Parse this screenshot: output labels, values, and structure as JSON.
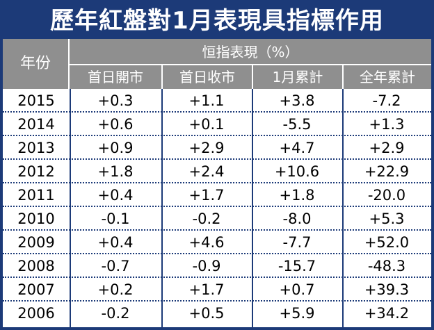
{
  "title": "歷年紅盤對1月表現具指標作用",
  "header": {
    "year": "年份",
    "group": "恒指表現（%）",
    "columns": [
      "首日開市",
      "首日收市",
      "1月累計",
      "全年累計"
    ]
  },
  "rows": [
    {
      "year": "2015",
      "values": [
        "+0.3",
        "+1.1",
        "+3.8",
        "-7.2"
      ]
    },
    {
      "year": "2014",
      "values": [
        "+0.6",
        "+0.1",
        "-5.5",
        "+1.3"
      ]
    },
    {
      "year": "2013",
      "values": [
        "+0.9",
        "+2.9",
        "+4.7",
        "+2.9"
      ]
    },
    {
      "year": "2012",
      "values": [
        "+1.8",
        "+2.4",
        "+10.6",
        "+22.9"
      ]
    },
    {
      "year": "2011",
      "values": [
        "+0.4",
        "+1.7",
        "+1.8",
        "-20.0"
      ]
    },
    {
      "year": "2010",
      "values": [
        "-0.1",
        "-0.2",
        "-8.0",
        "+5.3"
      ]
    },
    {
      "year": "2009",
      "values": [
        "+0.4",
        "+4.6",
        "-7.7",
        "+52.0"
      ]
    },
    {
      "year": "2008",
      "values": [
        "-0.7",
        "-0.9",
        "-15.7",
        "-48.3"
      ]
    },
    {
      "year": "2007",
      "values": [
        "+0.2",
        "+1.7",
        "+0.7",
        "+39.3"
      ]
    },
    {
      "year": "2006",
      "values": [
        "-0.2",
        "+0.5",
        "+5.9",
        "+34.2"
      ]
    }
  ],
  "colors": {
    "title_bg": "#1c3a78",
    "header_bg": "#8f8f8f",
    "border": "#1c3a78"
  }
}
